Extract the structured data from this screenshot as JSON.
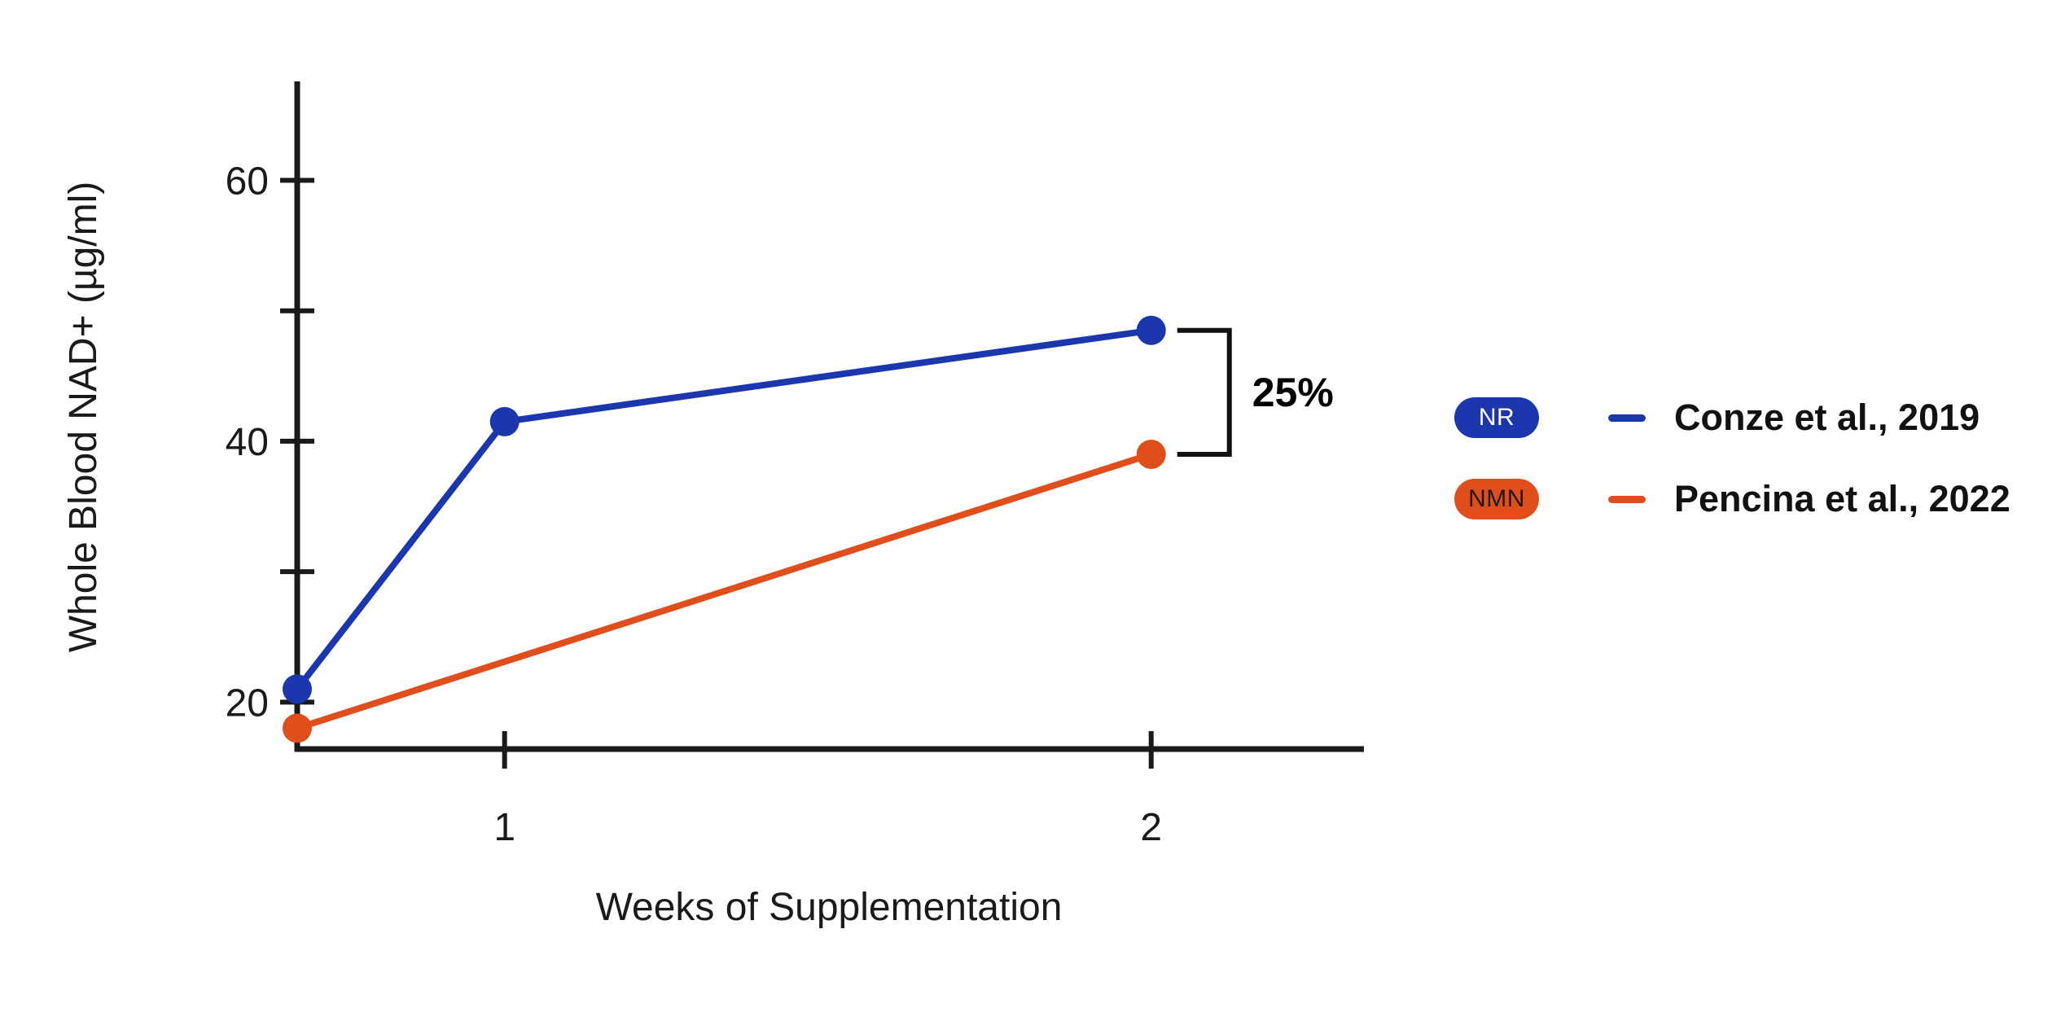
{
  "chart_data": {
    "type": "line",
    "title": "",
    "xlabel": "Weeks of Supplementation",
    "ylabel": "Whole Blood NAD+ (µg/ml)",
    "axis_color": "#1a1a1a",
    "text_color": "#1a1a1a",
    "annotation_color": "#000000",
    "x_axis": {
      "ticks": [
        {
          "label": "1",
          "week": 1,
          "fraction": 0.195
        },
        {
          "label": "2",
          "week": 2,
          "fraction": 0.803
        }
      ]
    },
    "y_axis": {
      "range": [
        16.4,
        67.4
      ],
      "ticks": [
        {
          "value": 60,
          "label": "60"
        },
        {
          "value": 50,
          "label": ""
        },
        {
          "value": 40,
          "label": "40"
        },
        {
          "value": 30,
          "label": ""
        },
        {
          "value": 20,
          "label": "20"
        }
      ]
    },
    "series": [
      {
        "id": "nr",
        "badge": "NR",
        "citation": "Conze et al., 2019",
        "color": "#1c36ae",
        "badge_text_color": "#ffffff",
        "points": [
          {
            "week": 0,
            "fraction": 0.0,
            "value": 21
          },
          {
            "week": 1,
            "fraction": 0.195,
            "value": 41.5
          },
          {
            "week": 2,
            "fraction": 0.803,
            "value": 48.5
          }
        ]
      },
      {
        "id": "nmn",
        "badge": "NMN",
        "citation": "Pencina et al., 2022",
        "color": "#e04e1b",
        "badge_text_color": "#1a1a1a",
        "points": [
          {
            "week": 0,
            "fraction": 0.0,
            "value": 18
          },
          {
            "week": 2,
            "fraction": 0.803,
            "value": 39
          }
        ]
      }
    ],
    "annotation": {
      "label": "25%",
      "from_series": "nr",
      "to_series": "nmn",
      "at_week": 2
    }
  }
}
